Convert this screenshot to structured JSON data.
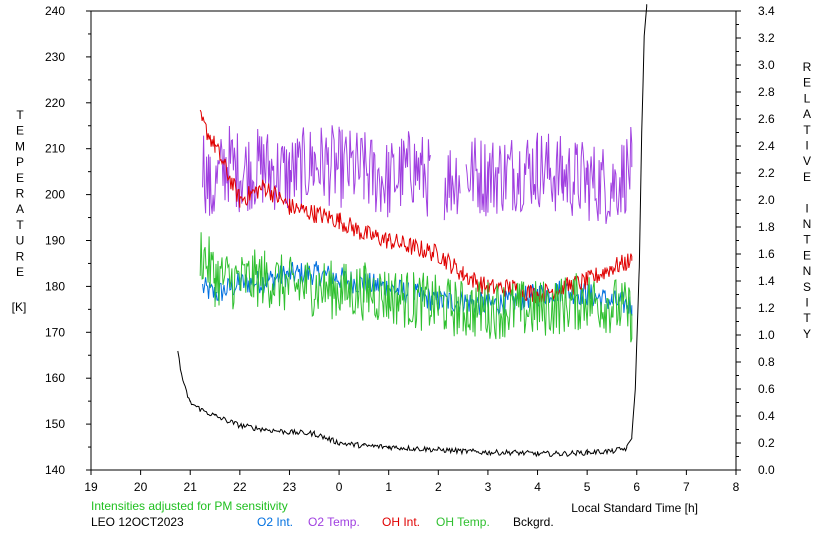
{
  "chart_data": {
    "type": "line",
    "left_axis_label": "TEMPERATURE [K]",
    "left_axis_letters": [
      "T",
      "E",
      "M",
      "P",
      "E",
      "R",
      "A",
      "T",
      "U",
      "R",
      "E"
    ],
    "left_axis_unit": "[K]",
    "right_axis_label": "RELATIVE INTENSITY",
    "right_axis_letters": [
      "R",
      "E",
      "L",
      "A",
      "T",
      "I",
      "V",
      "E",
      "",
      "I",
      "N",
      "T",
      "E",
      "N",
      "S",
      "I",
      "T",
      "Y"
    ],
    "xlabel": "Local Standard Time [h]",
    "x_ticks": [
      "19",
      "20",
      "21",
      "22",
      "23",
      "0",
      "1",
      "2",
      "3",
      "4",
      "5",
      "6",
      "7",
      "8"
    ],
    "x_range": [
      19,
      32
    ],
    "y_left_ticks": [
      "140",
      "150",
      "160",
      "170",
      "180",
      "190",
      "200",
      "210",
      "220",
      "230",
      "240"
    ],
    "y_left_range": [
      140,
      240
    ],
    "y_right_ticks": [
      "0.0",
      "0.2",
      "0.4",
      "0.6",
      "0.8",
      "1.0",
      "1.2",
      "1.4",
      "1.6",
      "1.8",
      "2.0",
      "2.2",
      "2.4",
      "2.6",
      "2.8",
      "3.0",
      "3.2",
      "3.4"
    ],
    "y_right_range": [
      0.0,
      3.4
    ],
    "grid": false,
    "note": "Intensities adjusted for PM sensitivity",
    "station": "LEO 12OCT2023",
    "series": [
      {
        "name": "O2 Int.",
        "axis": "right",
        "color": "#0070e0",
        "x": [
          21.25,
          21.5,
          22.0,
          22.5,
          23.0,
          23.5,
          24.0,
          24.5,
          25.0,
          25.5,
          26.0,
          26.5,
          27.0,
          27.5,
          28.0,
          28.5,
          29.0,
          29.5,
          29.9
        ],
        "values": [
          1.35,
          1.3,
          1.38,
          1.4,
          1.45,
          1.46,
          1.42,
          1.38,
          1.35,
          1.3,
          1.25,
          1.25,
          1.22,
          1.25,
          1.3,
          1.33,
          1.3,
          1.25,
          1.22
        ],
        "x_gaps": [
          [
            25.4,
            25.5
          ],
          [
            28.5,
            28.55
          ]
        ]
      },
      {
        "name": "O2 Temp.",
        "axis": "left",
        "color": "#a040e0",
        "x": [
          21.25,
          21.4,
          21.75,
          22.0,
          22.5,
          23.0,
          23.5,
          24.0,
          24.5,
          25.0,
          25.5,
          26.0,
          26.5,
          27.0,
          27.5,
          28.0,
          28.5,
          29.0,
          29.5,
          29.9
        ],
        "values": [
          208,
          200,
          207,
          205,
          206,
          204,
          207,
          206,
          205,
          203,
          206,
          202,
          205,
          204,
          205,
          206,
          204,
          203,
          202,
          206
        ],
        "x_gaps": [
          [
            25.85,
            26.1
          ],
          [
            26.45,
            26.55
          ]
        ]
      },
      {
        "name": "OH Int.",
        "axis": "right",
        "color": "#e00000",
        "x": [
          21.2,
          21.5,
          22.0,
          22.5,
          23.0,
          23.5,
          24.0,
          24.5,
          25.0,
          25.5,
          26.0,
          26.5,
          27.0,
          27.5,
          28.0,
          28.5,
          29.0,
          29.5,
          29.9
        ],
        "values": [
          2.6,
          2.4,
          2.0,
          2.1,
          1.95,
          1.9,
          1.85,
          1.75,
          1.7,
          1.65,
          1.6,
          1.45,
          1.35,
          1.35,
          1.3,
          1.35,
          1.4,
          1.5,
          1.55
        ],
        "x_gaps": []
      },
      {
        "name": "OH Temp.",
        "axis": "left",
        "color": "#30c030",
        "x": [
          21.2,
          21.5,
          22.0,
          22.5,
          23.0,
          23.5,
          24.0,
          24.5,
          25.0,
          25.5,
          26.0,
          26.5,
          27.0,
          27.5,
          28.0,
          28.5,
          29.0,
          29.5,
          29.9
        ],
        "values": [
          188,
          182,
          181,
          182,
          180,
          180,
          179,
          179,
          178,
          177,
          176,
          175,
          175,
          175,
          175,
          176,
          177,
          176,
          174
        ],
        "x_gaps": []
      },
      {
        "name": "Bckgrd.",
        "axis": "right",
        "color": "#000000",
        "x": [
          20.75,
          20.8,
          20.9,
          21.0,
          21.2,
          21.5,
          22.0,
          22.5,
          23.0,
          23.5,
          24.0,
          24.5,
          25.0,
          25.5,
          26.0,
          26.5,
          27.0,
          27.5,
          28.0,
          28.5,
          29.0,
          29.5,
          29.8,
          29.9,
          29.97,
          30.05,
          30.1,
          30.15,
          30.2
        ],
        "values": [
          0.88,
          0.75,
          0.6,
          0.5,
          0.45,
          0.4,
          0.33,
          0.3,
          0.28,
          0.27,
          0.2,
          0.18,
          0.17,
          0.16,
          0.15,
          0.14,
          0.13,
          0.13,
          0.12,
          0.12,
          0.13,
          0.14,
          0.16,
          0.25,
          0.6,
          1.5,
          2.5,
          3.2,
          3.45
        ],
        "x_gaps": []
      }
    ]
  }
}
